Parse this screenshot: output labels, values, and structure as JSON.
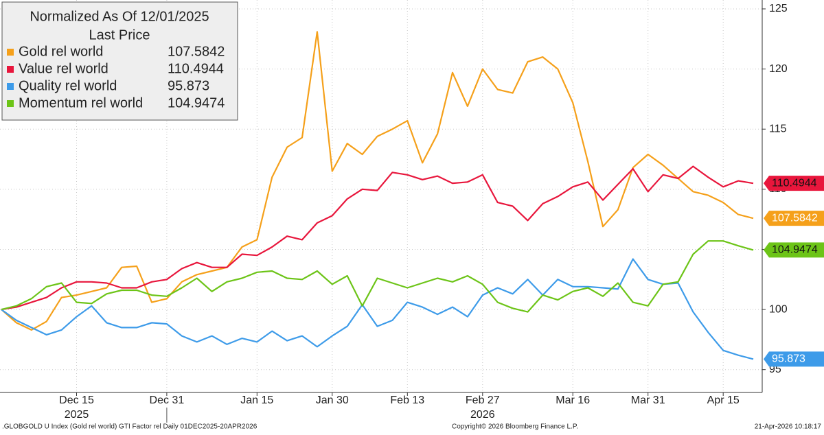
{
  "chart_data": {
    "type": "line",
    "legend_title": "Normalized As Of 12/01/2025",
    "legend_subtitle": "Last Price",
    "legend": "upper left",
    "grid": true,
    "categories": [
      null,
      null,
      null,
      null,
      null,
      "Dec 15",
      null,
      null,
      null,
      null,
      null,
      "Dec 31",
      null,
      null,
      null,
      null,
      null,
      "Jan 15",
      null,
      null,
      null,
      null,
      "Jan 30",
      null,
      null,
      null,
      null,
      "Feb 13",
      null,
      null,
      null,
      null,
      "Feb 27",
      null,
      null,
      null,
      null,
      null,
      "Mar 16",
      null,
      null,
      null,
      null,
      "Mar 31",
      null,
      null,
      null,
      null,
      "Apr 15",
      null,
      null
    ],
    "x_year_labels": [
      "2025",
      "2026"
    ],
    "ylim": [
      93.1,
      125.74
    ],
    "yticks": [
      95,
      100,
      105,
      110,
      115,
      120,
      125
    ],
    "series": [
      {
        "name": "Gold rel world",
        "color": "#f5a01a",
        "values": [
          100,
          98.9,
          98.3,
          99.0,
          101.0,
          101.2,
          101.5,
          101.8,
          103.5,
          103.6,
          100.6,
          100.9,
          102.3,
          102.9,
          103.2,
          103.5,
          105.2,
          105.8,
          111.0,
          113.5,
          114.3,
          123.1,
          111.5,
          113.8,
          112.9,
          114.4,
          115.0,
          115.7,
          112.2,
          114.6,
          119.7,
          116.9,
          120.0,
          118.3,
          118.0,
          120.6,
          121.0,
          120.0,
          117.2,
          112.3,
          106.9,
          108.3,
          111.8,
          112.9,
          112.0,
          110.9,
          109.8,
          109.5,
          108.9,
          107.9,
          107.5842
        ]
      },
      {
        "name": "Value rel world",
        "color": "#e8163c",
        "values": [
          100,
          100.2,
          100.6,
          101.0,
          101.8,
          102.3,
          102.3,
          102.2,
          101.8,
          101.8,
          102.3,
          102.5,
          103.4,
          103.9,
          103.5,
          103.5,
          104.6,
          104.5,
          105.2,
          106.1,
          105.8,
          107.2,
          107.8,
          109.2,
          110.0,
          109.9,
          111.4,
          111.2,
          110.8,
          111.1,
          110.5,
          110.6,
          111.2,
          108.9,
          108.6,
          107.4,
          108.8,
          109.4,
          110.2,
          110.6,
          109.1,
          110.4,
          111.7,
          109.8,
          111.2,
          110.9,
          111.9,
          111.0,
          110.2,
          110.7,
          110.4944
        ]
      },
      {
        "name": "Quality rel world",
        "color": "#3d9be9",
        "values": [
          100,
          99.1,
          98.5,
          97.9,
          98.3,
          99.4,
          100.3,
          98.9,
          98.5,
          98.5,
          98.9,
          98.8,
          97.8,
          97.3,
          97.8,
          97.1,
          97.6,
          97.3,
          98.2,
          97.4,
          97.8,
          96.9,
          97.8,
          98.6,
          100.4,
          98.6,
          99.1,
          100.6,
          100.2,
          99.6,
          100.2,
          99.4,
          101.2,
          101.8,
          101.3,
          102.5,
          101.2,
          102.5,
          101.9,
          101.9,
          101.8,
          101.7,
          104.2,
          102.5,
          102.1,
          102.2,
          99.8,
          98.1,
          96.6,
          96.2,
          95.873
        ]
      },
      {
        "name": "Momentum rel world",
        "color": "#6cc417",
        "values": [
          100,
          100.3,
          100.9,
          101.9,
          102.2,
          100.6,
          100.5,
          101.3,
          101.6,
          101.6,
          101.2,
          101.1,
          101.8,
          102.6,
          101.5,
          102.3,
          102.6,
          103.1,
          103.2,
          102.6,
          102.5,
          103.2,
          102.1,
          102.8,
          100.3,
          102.6,
          102.2,
          101.8,
          102.2,
          102.6,
          102.3,
          102.8,
          102.1,
          100.6,
          100.1,
          99.8,
          101.2,
          100.8,
          101.5,
          101.8,
          101.1,
          102.2,
          100.6,
          100.3,
          102.1,
          102.3,
          104.6,
          105.7,
          105.7,
          105.3,
          104.9474
        ]
      }
    ],
    "footer_left": ".GLOBGOLD U Index (Gold rel world) GTI Factor rel Daily 01DEC2025-20APR2026",
    "footer_center": "Copyright© 2026 Bloomberg Finance L.P.",
    "footer_right": "21-Apr-2026 10:18:17"
  }
}
